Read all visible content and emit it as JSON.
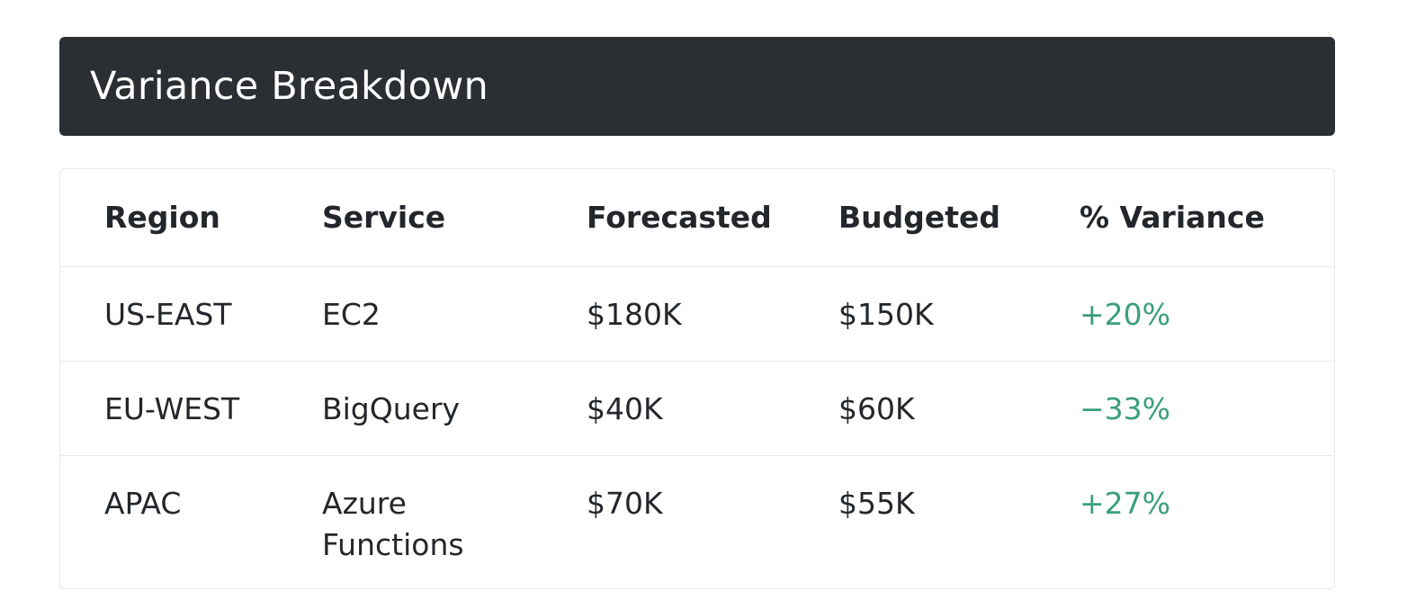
{
  "header": {
    "title": "Variance Breakdown",
    "background_color": "#2b2f33"
  },
  "table": {
    "columns": [
      "Region",
      "Service",
      "Forecasted",
      "Budgeted",
      "% Variance"
    ],
    "rows": [
      {
        "region": "US-EAST",
        "service": "EC2",
        "forecasted": "$180K",
        "budgeted": "$150K",
        "variance": "+20%"
      },
      {
        "region": "EU-WEST",
        "service": "BigQuery",
        "forecasted": "$40K",
        "budgeted": "$60K",
        "variance": "−33%"
      },
      {
        "region": "APAC",
        "service": "Azure Functions",
        "forecasted": "$70K",
        "budgeted": "$55K",
        "variance": "+27%"
      }
    ],
    "variance_color": "#3a9e7d"
  }
}
